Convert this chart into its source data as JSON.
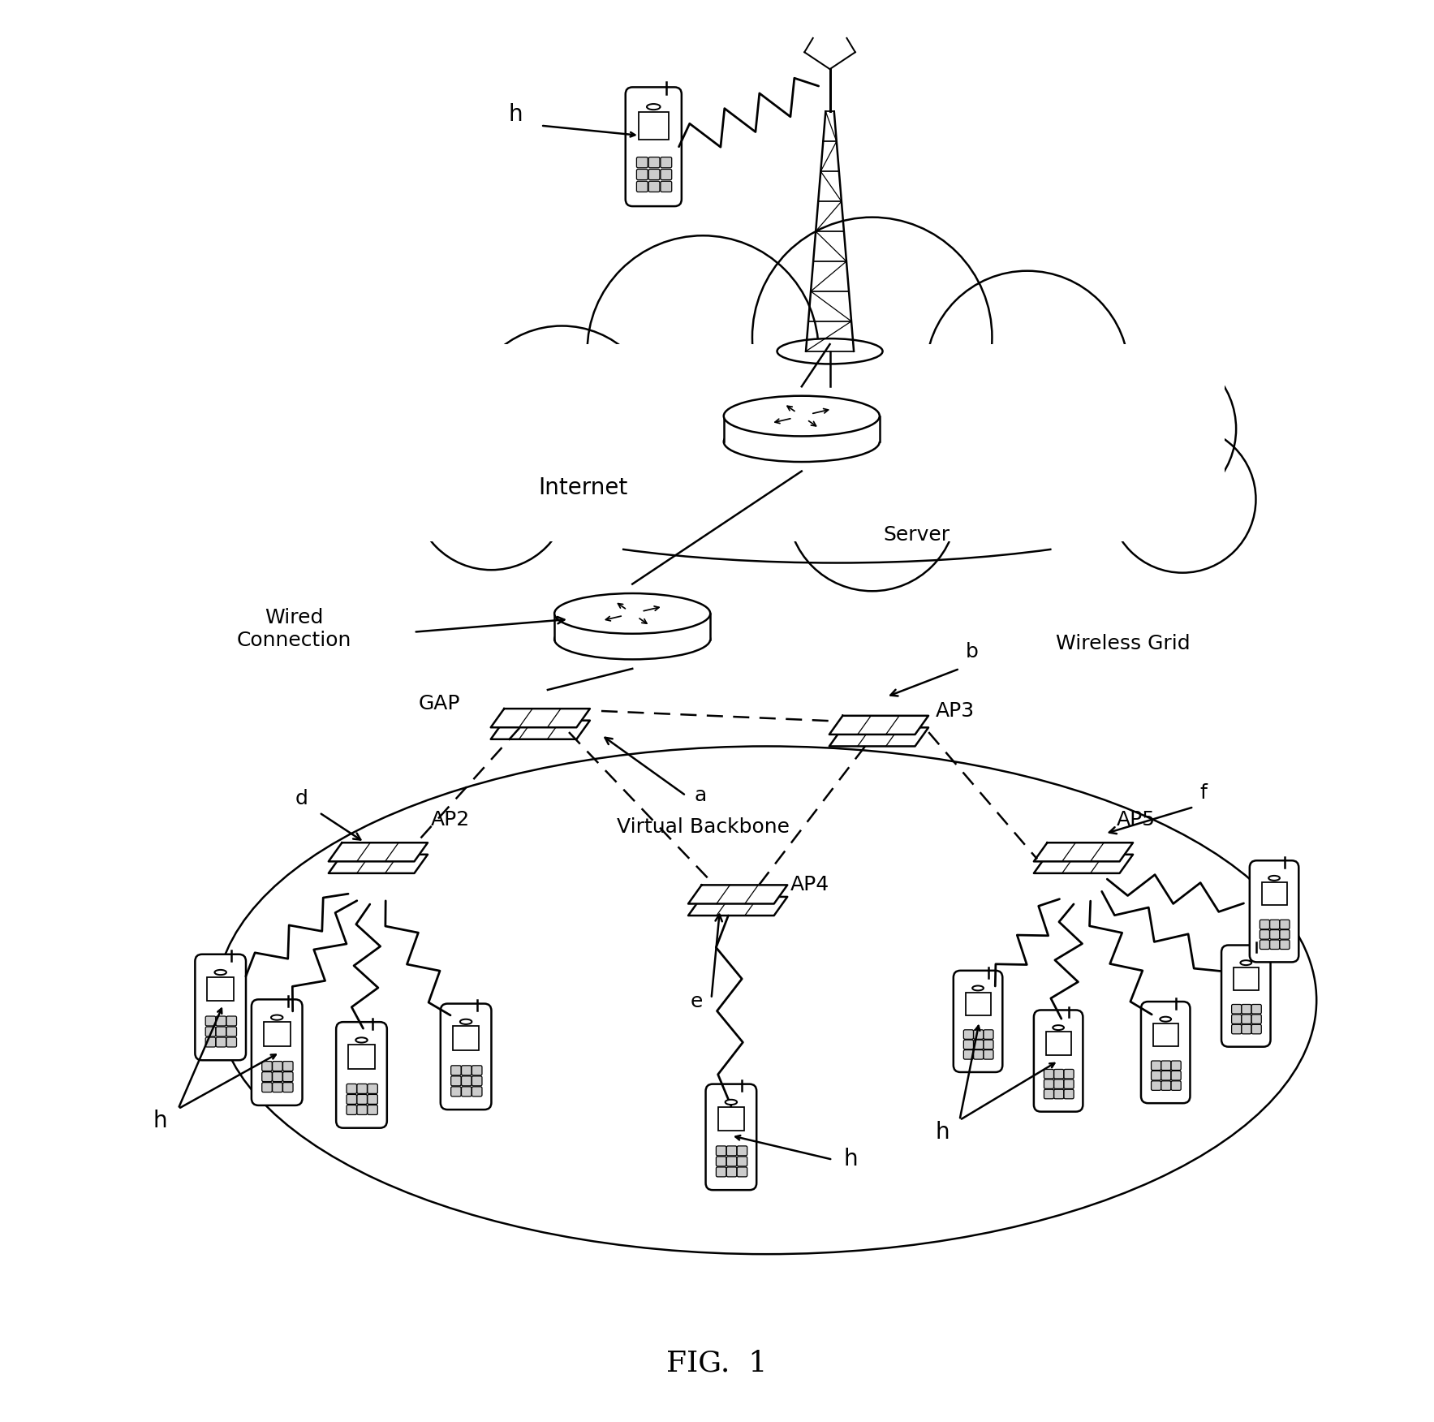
{
  "fig_title": "FIG.  1",
  "bg_color": "#ffffff",
  "line_color": "#000000",
  "labels": {
    "internet": "Internet",
    "server": "Server",
    "wired_connection": "Wired\nConnection",
    "gap": "GAP",
    "ap2": "AP2",
    "ap3": "AP3",
    "ap4": "AP4",
    "ap5": "AP5",
    "virtual_backbone": "Virtual Backbone",
    "wireless_grid": "Wireless Grid",
    "a": "a",
    "b": "b",
    "d": "d",
    "e": "e",
    "f": "f",
    "h": "h"
  }
}
